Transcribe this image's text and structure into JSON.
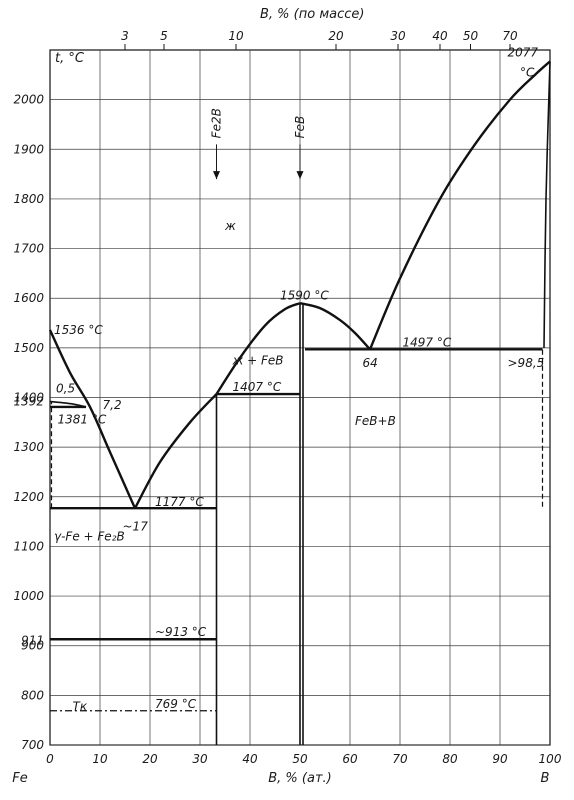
{
  "chart_data": {
    "type": "line",
    "title": "",
    "top_axis_label": "B, % (по массе)",
    "top_ticks": [
      {
        "label": "3",
        "at": 15.0
      },
      {
        "label": "5",
        "at": 22.8
      },
      {
        "label": "10",
        "at": 37.2
      },
      {
        "label": "20",
        "at": 57.2
      },
      {
        "label": "30",
        "at": 69.6
      },
      {
        "label": "40",
        "at": 78.0
      },
      {
        "label": "50",
        "at": 84.1
      },
      {
        "label": "70",
        "at": 92.0
      }
    ],
    "xlabel": "B, % (ат.)",
    "ylabel": "t, °C",
    "xlim": [
      0,
      100
    ],
    "ylim": [
      700,
      2100
    ],
    "x_ticks": [
      "0",
      "10",
      "20",
      "30",
      "40",
      "50",
      "60",
      "70",
      "80",
      "90",
      "100"
    ],
    "y_ticks": [
      "700",
      "800",
      "900",
      "1000",
      "1100",
      "1200",
      "1300",
      "1400",
      "1500",
      "1600",
      "1700",
      "1800",
      "1900",
      "2000"
    ],
    "extra_y_ticks": [
      {
        "label": "1392",
        "y": 1392
      },
      {
        "label": "911",
        "y": 911
      }
    ],
    "element_left": "Fe",
    "element_right": "B",
    "series": [
      {
        "x": [
          0,
          4,
          8,
          12,
          17
        ],
        "y": [
          1536,
          1450,
          1381,
          1290,
          1177
        ]
      },
      {
        "x": [
          17,
          22,
          28,
          33.3
        ],
        "y": [
          1177,
          1270,
          1350,
          1407
        ]
      },
      {
        "x": [
          33.3,
          38,
          43,
          47,
          50
        ],
        "y": [
          1407,
          1480,
          1545,
          1578,
          1590
        ]
      },
      {
        "x": [
          50,
          54,
          58,
          61,
          64
        ],
        "y": [
          1590,
          1580,
          1556,
          1530,
          1497
        ]
      },
      {
        "x": [
          64,
          70,
          78,
          85,
          92,
          97,
          100
        ],
        "y": [
          1497,
          1640,
          1800,
          1910,
          2000,
          2050,
          2077
        ]
      },
      {
        "x": [
          0,
          2,
          4.5,
          7.2
        ],
        "y": [
          1392,
          1390,
          1387,
          1381
        ]
      },
      {
        "x": [
          100,
          99.2,
          98.8
        ],
        "y": [
          2077,
          1800,
          1500
        ]
      }
    ],
    "horizontal_lines": [
      {
        "y": 1177,
        "x1": 0,
        "x2": 33.3
      },
      {
        "y": 1407,
        "x1": 33.3,
        "x2": 50
      },
      {
        "y": 1497,
        "x1": 51,
        "x2": 98.5
      },
      {
        "y": 913,
        "x1": 0,
        "x2": 33.3
      },
      {
        "y": 1381,
        "x1": 0,
        "x2": 7.2
      }
    ],
    "compound_lines": [
      {
        "name": "Fe2B",
        "x": 33.3,
        "y1": 700,
        "y2": 1407
      },
      {
        "name": "FeB",
        "x": 50,
        "y1": 700,
        "y2": 1590
      }
    ],
    "dashed_lines": [
      {
        "x": 98.5,
        "y1": 1180,
        "y2": 1497
      },
      {
        "x": 0.3,
        "y1": 1177,
        "y2": 1392
      }
    ],
    "dashdot_line": {
      "y": 769,
      "x1": 0,
      "x2": 33.3
    },
    "annotations": [
      {
        "text": "1536 °C",
        "x": 0.8,
        "y": 1536
      },
      {
        "text": "0,5",
        "x": 1.2,
        "y": 1418
      },
      {
        "text": "7,2",
        "x": 10.5,
        "y": 1385
      },
      {
        "text": "1381 °C",
        "x": 1.5,
        "y": 1356
      },
      {
        "text": "1177 °C",
        "x": 21,
        "y": 1190
      },
      {
        "text": "~17",
        "x": 14.5,
        "y": 1140
      },
      {
        "text": "γ-Fe + Fe₂B",
        "x": 0.8,
        "y": 1120
      },
      {
        "text": "~913 °C",
        "x": 21,
        "y": 928
      },
      {
        "text": "Tк",
        "x": 4.5,
        "y": 778
      },
      {
        "text": "769 °C",
        "x": 21,
        "y": 783
      },
      {
        "text": "1407 °C",
        "x": 36.5,
        "y": 1421
      },
      {
        "text": "ж + FeB",
        "x": 36.5,
        "y": 1475
      },
      {
        "text": "1590 °C",
        "x": 46,
        "y": 1605
      },
      {
        "text": "1497 °C",
        "x": 70.5,
        "y": 1511
      },
      {
        "text": "64",
        "x": 62.5,
        "y": 1470
      },
      {
        "text": ">98,5",
        "x": 91.5,
        "y": 1470
      },
      {
        "text": "FeB+B",
        "x": 61,
        "y": 1353
      },
      {
        "text": "ж",
        "x": 35,
        "y": 1745
      },
      {
        "text": "2077",
        "x": 91.5,
        "y": 2095
      },
      {
        "text": "°C",
        "x": 94,
        "y": 2055
      }
    ],
    "arrows": [
      {
        "label": "Fe2B",
        "x": 33.3,
        "y_from": 1910,
        "y_to": 1840
      },
      {
        "label": "FeB",
        "x": 50,
        "y_from": 1910,
        "y_to": 1840
      }
    ]
  }
}
